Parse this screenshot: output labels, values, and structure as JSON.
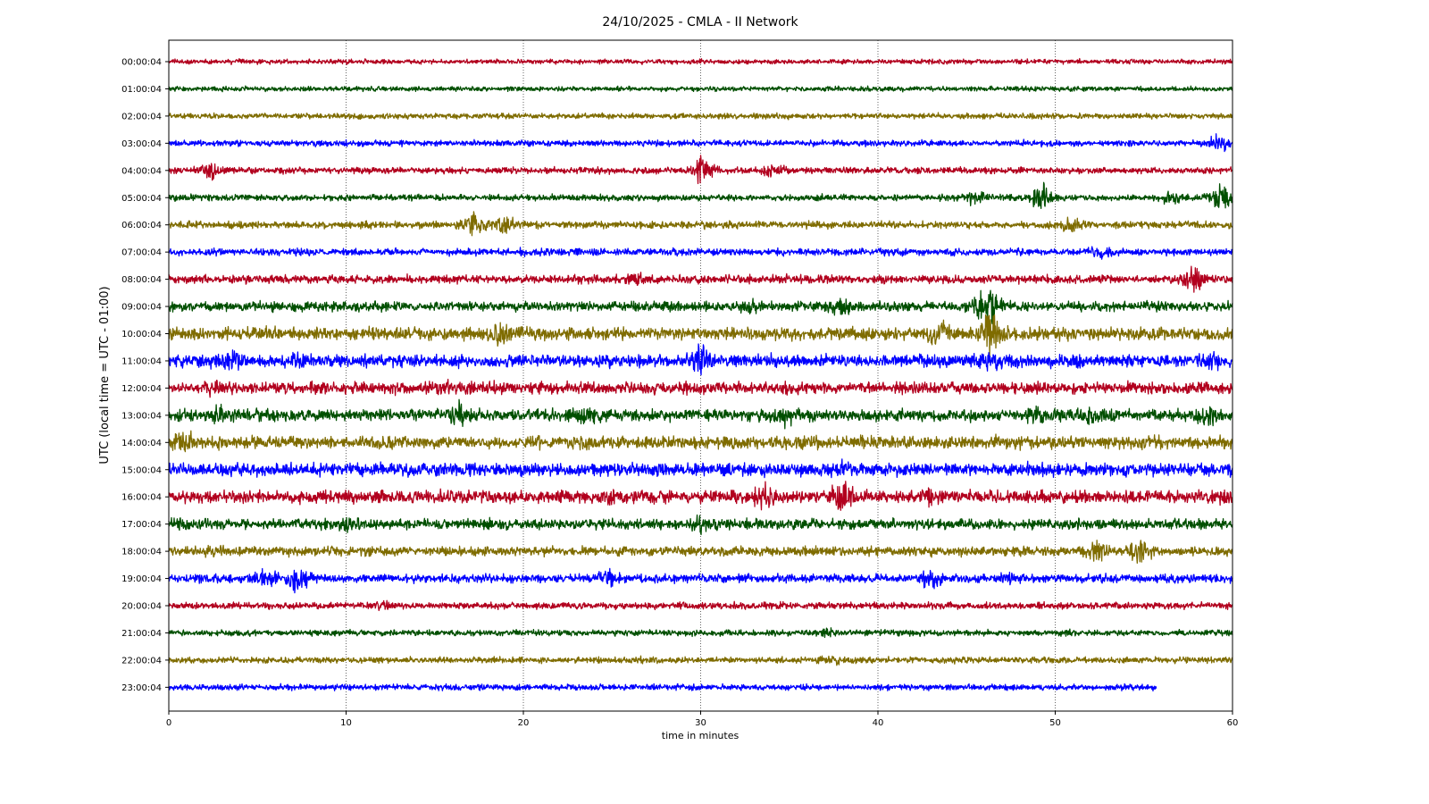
{
  "chart_data": {
    "type": "line",
    "title": "24/10/2025 - CMLA - II Network",
    "xlabel": "time in minutes",
    "ylabel": "UTC (local time = UTC - 01:00)",
    "xlim": [
      0,
      60
    ],
    "x_ticks": [
      0,
      10,
      20,
      30,
      40,
      50,
      60
    ],
    "grid": "vertical dotted lines at x ticks",
    "trace_colors": [
      "#b2001e",
      "#004f00",
      "#7f6c00",
      "#0000ff"
    ],
    "series": [
      {
        "label": "00:00:04",
        "color": "#b2001e",
        "end_minute": 60,
        "base_amplitude": 0.12,
        "events": []
      },
      {
        "label": "01:00:04",
        "color": "#004f00",
        "end_minute": 60,
        "base_amplitude": 0.12,
        "events": []
      },
      {
        "label": "02:00:04",
        "color": "#7f6c00",
        "end_minute": 60,
        "base_amplitude": 0.14,
        "events": []
      },
      {
        "label": "03:00:04",
        "color": "#0000ff",
        "end_minute": 60,
        "base_amplitude": 0.15,
        "events": [
          {
            "t": 59.2,
            "amp": 0.5
          }
        ]
      },
      {
        "label": "04:00:04",
        "color": "#b2001e",
        "end_minute": 60,
        "base_amplitude": 0.16,
        "events": [
          {
            "t": 2.3,
            "amp": 0.45
          },
          {
            "t": 30.1,
            "amp": 0.7
          },
          {
            "t": 34.0,
            "amp": 0.45
          }
        ]
      },
      {
        "label": "05:00:04",
        "color": "#004f00",
        "end_minute": 60,
        "base_amplitude": 0.16,
        "events": [
          {
            "t": 45.5,
            "amp": 0.45
          },
          {
            "t": 49.3,
            "amp": 0.75
          },
          {
            "t": 56.5,
            "amp": 0.4
          },
          {
            "t": 59.4,
            "amp": 0.8
          }
        ]
      },
      {
        "label": "06:00:04",
        "color": "#7f6c00",
        "end_minute": 60,
        "base_amplitude": 0.18,
        "events": [
          {
            "t": 17.2,
            "amp": 0.6
          },
          {
            "t": 19.0,
            "amp": 0.5
          },
          {
            "t": 51.0,
            "amp": 0.45
          }
        ]
      },
      {
        "label": "07:00:04",
        "color": "#0000ff",
        "end_minute": 60,
        "base_amplitude": 0.18,
        "events": [
          {
            "t": 52.6,
            "amp": 0.35
          }
        ]
      },
      {
        "label": "08:00:04",
        "color": "#b2001e",
        "end_minute": 60,
        "base_amplitude": 0.22,
        "events": [
          {
            "t": 26.3,
            "amp": 0.45
          },
          {
            "t": 57.8,
            "amp": 0.85
          }
        ]
      },
      {
        "label": "09:00:04",
        "color": "#004f00",
        "end_minute": 60,
        "base_amplitude": 0.25,
        "events": [
          {
            "t": 32.6,
            "amp": 0.6
          },
          {
            "t": 37.8,
            "amp": 0.6
          },
          {
            "t": 46.2,
            "amp": 1.3
          }
        ]
      },
      {
        "label": "10:00:04",
        "color": "#7f6c00",
        "end_minute": 60,
        "base_amplitude": 0.32,
        "events": [
          {
            "t": 18.7,
            "amp": 0.7
          },
          {
            "t": 43.5,
            "amp": 0.7
          },
          {
            "t": 46.4,
            "amp": 1.1
          }
        ]
      },
      {
        "label": "11:00:04",
        "color": "#0000ff",
        "end_minute": 60,
        "base_amplitude": 0.32,
        "events": [
          {
            "t": 3.5,
            "amp": 0.8
          },
          {
            "t": 7.0,
            "amp": 0.45
          },
          {
            "t": 30.0,
            "amp": 0.9
          },
          {
            "t": 46.3,
            "amp": 0.5
          },
          {
            "t": 59.0,
            "amp": 0.5
          }
        ]
      },
      {
        "label": "12:00:04",
        "color": "#b2001e",
        "end_minute": 60,
        "base_amplitude": 0.3,
        "events": [
          {
            "t": 2.5,
            "amp": 0.5
          },
          {
            "t": 15.5,
            "amp": 0.4
          },
          {
            "t": 35.0,
            "amp": 0.4
          }
        ]
      },
      {
        "label": "13:00:04",
        "color": "#004f00",
        "end_minute": 60,
        "base_amplitude": 0.3,
        "events": [
          {
            "t": 2.9,
            "amp": 0.5
          },
          {
            "t": 16.4,
            "amp": 0.75
          },
          {
            "t": 23.5,
            "amp": 0.55
          },
          {
            "t": 34.8,
            "amp": 0.55
          },
          {
            "t": 49.1,
            "amp": 0.5
          },
          {
            "t": 51.8,
            "amp": 0.55
          },
          {
            "t": 58.7,
            "amp": 0.65
          }
        ]
      },
      {
        "label": "14:00:04",
        "color": "#7f6c00",
        "end_minute": 60,
        "base_amplitude": 0.32,
        "events": [
          {
            "t": 0.7,
            "amp": 0.7
          },
          {
            "t": 23.3,
            "amp": 0.45
          }
        ]
      },
      {
        "label": "15:00:04",
        "color": "#0000ff",
        "end_minute": 60,
        "base_amplitude": 0.33,
        "events": [
          {
            "t": 38.0,
            "amp": 0.5
          },
          {
            "t": 48.0,
            "amp": 0.35
          }
        ]
      },
      {
        "label": "16:00:04",
        "color": "#b2001e",
        "end_minute": 60,
        "base_amplitude": 0.32,
        "events": [
          {
            "t": 24.8,
            "amp": 0.45
          },
          {
            "t": 33.6,
            "amp": 0.9
          },
          {
            "t": 38.0,
            "amp": 1.15
          },
          {
            "t": 43.0,
            "amp": 0.55
          },
          {
            "t": 59.7,
            "amp": 0.5
          }
        ]
      },
      {
        "label": "17:00:04",
        "color": "#004f00",
        "end_minute": 60,
        "base_amplitude": 0.26,
        "events": [
          {
            "t": 0.7,
            "amp": 0.45
          },
          {
            "t": 10.0,
            "amp": 0.45
          },
          {
            "t": 30.0,
            "amp": 0.55
          }
        ]
      },
      {
        "label": "18:00:04",
        "color": "#7f6c00",
        "end_minute": 60,
        "base_amplitude": 0.24,
        "events": [
          {
            "t": 2.5,
            "amp": 0.4
          },
          {
            "t": 52.4,
            "amp": 0.6
          },
          {
            "t": 54.8,
            "amp": 0.75
          }
        ]
      },
      {
        "label": "19:00:04",
        "color": "#0000ff",
        "end_minute": 60,
        "base_amplitude": 0.22,
        "events": [
          {
            "t": 5.5,
            "amp": 0.55
          },
          {
            "t": 7.2,
            "amp": 0.7
          },
          {
            "t": 24.8,
            "amp": 0.6
          },
          {
            "t": 43.0,
            "amp": 0.6
          },
          {
            "t": 47.5,
            "amp": 0.35
          }
        ]
      },
      {
        "label": "20:00:04",
        "color": "#b2001e",
        "end_minute": 60,
        "base_amplitude": 0.17,
        "events": [
          {
            "t": 12.0,
            "amp": 0.3
          }
        ]
      },
      {
        "label": "21:00:04",
        "color": "#004f00",
        "end_minute": 60,
        "base_amplitude": 0.15,
        "events": [
          {
            "t": 37.0,
            "amp": 0.3
          }
        ]
      },
      {
        "label": "22:00:04",
        "color": "#7f6c00",
        "end_minute": 60,
        "base_amplitude": 0.16,
        "events": [
          {
            "t": 37.3,
            "amp": 0.35
          }
        ]
      },
      {
        "label": "23:00:04",
        "color": "#0000ff",
        "end_minute": 55.7,
        "base_amplitude": 0.15,
        "events": []
      }
    ]
  }
}
